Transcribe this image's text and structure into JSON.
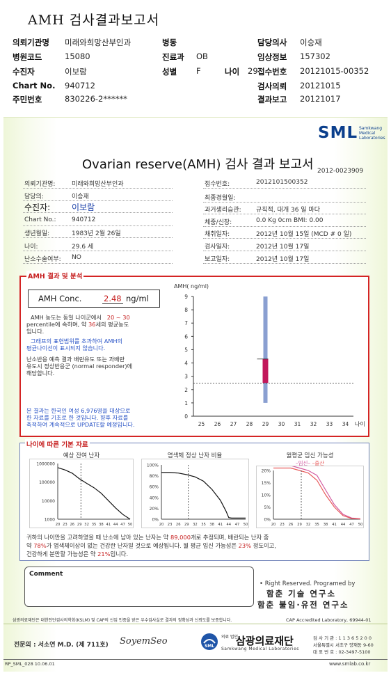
{
  "header": {
    "title": "AMH 검사결과보고서",
    "rows": [
      [
        {
          "k": "의뢰기관명",
          "v": "미래와희망산부인과"
        },
        {
          "k": "병동",
          "v": ""
        },
        {
          "k": "담당의사",
          "v": "이승재"
        }
      ],
      [
        {
          "k": "병원코드",
          "v": "15080"
        },
        {
          "k": "진료과",
          "v": "OB"
        },
        {
          "k": "임상정보",
          "v": "157302"
        }
      ],
      [
        {
          "k": "수진자",
          "v": "이보람"
        },
        {
          "k": "성별",
          "v": "F"
        },
        {
          "k": "나이",
          "v": "29"
        },
        {
          "k": "접수번호",
          "v": "20121015-00352"
        }
      ],
      [
        {
          "k": "Chart No.",
          "v": "940712"
        },
        {
          "k": "검사의뢰",
          "v": "20121015"
        }
      ],
      [
        {
          "k": "주민번호",
          "v": "830226-2******"
        },
        {
          "k": "결과보고",
          "v": "20121017"
        }
      ]
    ]
  },
  "report": {
    "logo": "SML",
    "logo_sub": "Samkwang Medical Laboratories",
    "title": "Ovarian reserve(AMH) 검사 결과 보고서",
    "doc_no": "2012-0023909",
    "left_info": [
      {
        "k": "의뢰기관명:",
        "v": "미래와희망산부인과"
      },
      {
        "k": "담당의:",
        "v": "이승재"
      },
      {
        "k": "수진자:",
        "v": "이보람"
      },
      {
        "k": "Chart No.:",
        "v": "940712"
      },
      {
        "k": "생년월일:",
        "v": "1983년 2월 26일"
      },
      {
        "k": "나이:",
        "v": "29.6 세"
      },
      {
        "k": "난소수술여부:",
        "v": "NO"
      }
    ],
    "right_info": [
      {
        "k": "접수번호:",
        "v": "2012101500352"
      },
      {
        "k": "최종경월일:",
        "v": ""
      },
      {
        "k": "과거생리습관:",
        "v": "규칙적, 대개   36 일 마다"
      },
      {
        "k": "체중/신장:",
        "v": "0.0 Kg       0cm     BMI:    0.00"
      },
      {
        "k": "채취일자:",
        "v": "2012년 10월 15일 (MCD #  0 일)"
      },
      {
        "k": "검사일자:",
        "v": "2012년 10월 17일"
      },
      {
        "k": "보고일자:",
        "v": "2012년 10월 17일"
      }
    ]
  },
  "amh": {
    "section_label": "AMH 결과 및 분석",
    "conc_label": "AMH Conc.",
    "conc_value": "2.48",
    "conc_unit": "ng/ml",
    "p1a": "AMH 농도는 동일 나이군에서",
    "p1b": "20 ~ 30",
    "p1c": "percentile에 속하며, 약",
    "p1d": "36",
    "p1e": "세의 평균농도",
    "p1f": "입니다.",
    "p2a": "그래프의 표현범위를 초과하여 AMH의",
    "p2b": "평균나이선이 표시되지 않습니다.",
    "p3a": "난소반응 예측 결과 배란유도 또는 과배란",
    "p3b": "유도시 정상반응군 (normal responder)에",
    "p3c": "해당합니다.",
    "p4a": "본 결과는 한국인 여성 6,976명을 대상으로",
    "p4b": "한 자료를 기초로 한 것입니다. 향후 자료를",
    "p4c": "축적하여 계속적으로 UPDATE할 예정입니다."
  },
  "age": {
    "section_label": "나이에 따른 기본 자료",
    "chart1_title": "예상 잔여 난자",
    "chart2_title": "염색체 정상 난자 비율",
    "chart3_title": "월평균 임신 가능성",
    "legend_a": "임신",
    "legend_b": "출산",
    "s1a": "귀하의 나이만을 고려하였을 때 난소에 남아 있는 난자는 약",
    "s1b": "89,000",
    "s1c": "개로 추정되며, 배란되는 난자 중",
    "s2a": "약",
    "s2b": "78%",
    "s2c": "가 염색체이상이 없는 건강한 난자일 것으로 예상됩니다. 월 평균 임신 가능성은",
    "s2d": "23%",
    "s2e": "정도이고,",
    "s3a": "건강하게 분만할 가능성은 약",
    "s3b": "21%",
    "s3c": "입니다."
  },
  "footer": {
    "comment_label": "Comment",
    "rights": "• Right Reserved. Programed by",
    "inst1": "함춘 기술 연구소",
    "inst2": "함춘 불임·유전 연구소",
    "cert": "삼광의료재단은 대한진단검사의학회(KSLM) 및 CAP의 신임 인증을 받은 우수검사실로 결과의 정확성과 신뢰도를 보증합니다.",
    "cap": "CAP  Accredited  Laboratory,  69944-01",
    "signer": "전문의 : 서소연 M.D. (제 711호)",
    "signature": "SoyemSeo",
    "org_small": "의료 법인",
    "org": "삼광의료재단",
    "org_en": "Samkwang Medical Laboratories",
    "addr1": "검 사 기 관 : 1 1 3 6 5 2 0 0",
    "addr2": "서울특별시 서초구 양재동 9-60",
    "addr3": "대 표 번 호 : 02-3497-5100",
    "form_code": "RP_SML_028  10.06.01",
    "site": "www.smlab.co.kr"
  },
  "chart_data": [
    {
      "type": "range-bar",
      "ylabel": "AMH( ng/ml)",
      "xlabel": "나이",
      "x_ticks": [
        25,
        26,
        27,
        28,
        29,
        30,
        31,
        32,
        33,
        34
      ],
      "y_ticks": [
        0,
        1,
        2,
        3,
        4,
        5,
        6,
        7,
        8,
        9
      ],
      "ylim": [
        0,
        9
      ],
      "xlim": [
        24.5,
        34.5
      ],
      "range": {
        "x": 29,
        "low": 1.0,
        "high": 9.0
      },
      "iqr": {
        "x": 29,
        "low": 2.5,
        "high": 4.3
      },
      "value_line": 2.48,
      "color_range": "#8a9fd1",
      "color_iqr": "#c2185b"
    },
    {
      "type": "line",
      "title": "예상 잔여 난자",
      "y_ticks": [
        "1000000",
        "100000",
        "10000",
        "1000"
      ],
      "x_ticks": [
        20,
        23,
        26,
        29,
        32,
        35,
        38,
        41,
        44,
        47,
        50
      ],
      "scale": "log",
      "points": [
        [
          20,
          600000
        ],
        [
          23,
          450000
        ],
        [
          26,
          300000
        ],
        [
          29,
          150000
        ],
        [
          32,
          85000
        ],
        [
          35,
          50000
        ],
        [
          38,
          25000
        ],
        [
          41,
          10000
        ],
        [
          44,
          4000
        ],
        [
          47,
          1800
        ],
        [
          50,
          1000
        ]
      ],
      "marker_x": 29.6
    },
    {
      "type": "line",
      "title": "염색체 정상 난자 비율",
      "y_ticks": [
        "100%",
        "80%",
        "60%",
        "40%",
        "20%",
        "0%"
      ],
      "x_ticks": [
        20,
        23,
        26,
        29,
        32,
        35,
        38,
        41,
        44,
        47,
        50
      ],
      "points": [
        [
          20,
          86
        ],
        [
          23,
          86
        ],
        [
          26,
          85
        ],
        [
          29,
          82
        ],
        [
          32,
          78
        ],
        [
          35,
          70
        ],
        [
          38,
          55
        ],
        [
          41,
          35
        ],
        [
          43,
          15
        ],
        [
          44,
          3
        ],
        [
          45,
          2
        ],
        [
          47,
          2
        ],
        [
          50,
          2
        ]
      ],
      "marker_x": 29.6
    },
    {
      "type": "line",
      "title": "월평균 임신 가능성",
      "y_ticks": [
        "20%",
        "15%",
        "10%",
        "5%",
        "0%"
      ],
      "x_ticks": [
        20,
        23,
        26,
        29,
        32,
        35,
        38,
        41,
        44,
        47,
        50
      ],
      "series": [
        {
          "name": "임신",
          "points": [
            [
              20,
              22
            ],
            [
              26,
              22
            ],
            [
              29,
              21
            ],
            [
              32,
              20
            ],
            [
              35,
              18
            ],
            [
              38,
              12
            ],
            [
              41,
              6
            ],
            [
              44,
              2
            ],
            [
              47,
              0.5
            ],
            [
              50,
              0.2
            ]
          ],
          "color": "#d25aa0"
        },
        {
          "name": "출산",
          "points": [
            [
              20,
              21
            ],
            [
              26,
              21
            ],
            [
              29,
              20
            ],
            [
              32,
              19
            ],
            [
              35,
              16
            ],
            [
              38,
              10
            ],
            [
              41,
              5
            ],
            [
              44,
              1.5
            ],
            [
              47,
              0.3
            ],
            [
              50,
              0.1
            ]
          ],
          "color": "#e85a5a"
        }
      ],
      "marker_x": 29.6
    }
  ]
}
